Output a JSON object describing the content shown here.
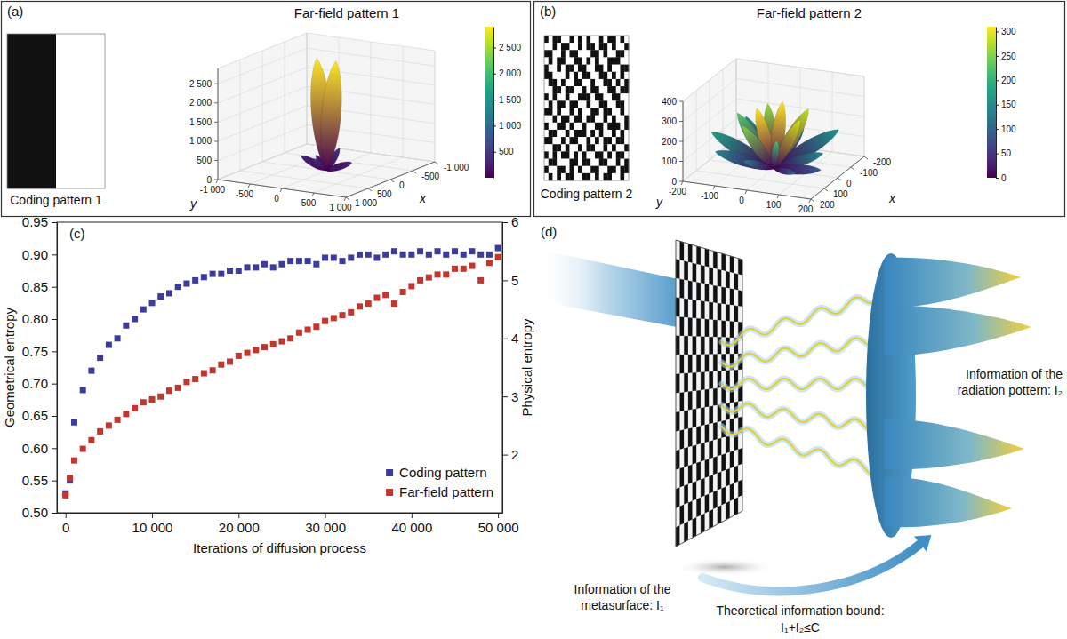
{
  "chart_data": [
    {
      "type": "surface3d",
      "panel": "(a)",
      "title": "Far-field pattern 1",
      "grid": true,
      "coding_pattern": {
        "label": "Coding pattern 1",
        "cells": [
          [
            1,
            0
          ]
        ]
      },
      "x_label": "x",
      "y_label": "y",
      "xlim": [
        -1000,
        1000
      ],
      "xticks": [
        {
          "value": -1000,
          "label": "-1 000"
        },
        -500,
        0,
        500,
        {
          "value": 1000,
          "label": "1 000"
        }
      ],
      "ylim": [
        -1000,
        1000
      ],
      "yticks": [
        {
          "value": -1000,
          "label": "-1 000"
        },
        -500,
        0,
        500,
        {
          "value": 1000,
          "label": "1 000"
        }
      ],
      "zlim": [
        0,
        2900
      ],
      "zticks": [
        0,
        500,
        {
          "value": 1000,
          "label": "1 000"
        },
        {
          "value": 1500,
          "label": "1 500"
        },
        {
          "value": 2000,
          "label": "2 000"
        },
        {
          "value": 2500,
          "label": "2 500"
        }
      ],
      "colorbar": {
        "range": [
          0,
          2900
        ],
        "ticks": [
          500,
          {
            "value": 1000,
            "label": "1 000"
          },
          {
            "value": 1500,
            "label": "1 500"
          },
          {
            "value": 2000,
            "label": "2 000"
          },
          {
            "value": 2500,
            "label": "2 500"
          }
        ]
      },
      "lobes": [
        {
          "x": -200,
          "y": -300,
          "z": 250
        },
        {
          "x": 0,
          "y": -400,
          "z": 300
        },
        {
          "x": -300,
          "y": 0,
          "z": 450
        },
        {
          "x": 0,
          "y": -150,
          "z": 2900
        },
        {
          "x": 0,
          "y": 150,
          "z": 2900
        },
        {
          "x": 300,
          "y": 0,
          "z": 450
        },
        {
          "x": 0,
          "y": 400,
          "z": 300
        },
        {
          "x": 200,
          "y": 300,
          "z": 250
        }
      ]
    },
    {
      "type": "surface3d",
      "panel": "(b)",
      "title": "Far-field pattern 2",
      "grid": true,
      "coding_pattern": {
        "label": "Coding pattern 2",
        "cells": [
          [
            1,
            0,
            1,
            1,
            0,
            0,
            1,
            0,
            1,
            0,
            1,
            0,
            0,
            1,
            0,
            1,
            1,
            0,
            1,
            0
          ],
          [
            0,
            0,
            1,
            0,
            1,
            1,
            0,
            0,
            1,
            0,
            1,
            1,
            0,
            1,
            1,
            0,
            1,
            0,
            0,
            1
          ],
          [
            1,
            1,
            0,
            0,
            1,
            0,
            1,
            1,
            0,
            0,
            0,
            1,
            1,
            0,
            1,
            0,
            0,
            1,
            1,
            0
          ],
          [
            0,
            1,
            0,
            1,
            1,
            0,
            0,
            1,
            1,
            0,
            1,
            0,
            1,
            0,
            0,
            1,
            1,
            1,
            0,
            0
          ],
          [
            1,
            0,
            0,
            1,
            0,
            1,
            1,
            0,
            1,
            1,
            0,
            0,
            1,
            1,
            0,
            1,
            0,
            0,
            1,
            1
          ],
          [
            1,
            1,
            0,
            0,
            0,
            1,
            0,
            1,
            0,
            1,
            1,
            0,
            0,
            1,
            1,
            0,
            1,
            0,
            1,
            0
          ],
          [
            0,
            1,
            1,
            0,
            1,
            0,
            0,
            1,
            1,
            0,
            0,
            1,
            0,
            0,
            1,
            1,
            0,
            1,
            0,
            1
          ],
          [
            0,
            0,
            1,
            1,
            0,
            1,
            1,
            0,
            0,
            1,
            0,
            1,
            1,
            0,
            0,
            1,
            1,
            0,
            1,
            1
          ],
          [
            1,
            0,
            1,
            0,
            0,
            1,
            0,
            0,
            1,
            1,
            1,
            0,
            1,
            1,
            0,
            0,
            1,
            1,
            0,
            0
          ],
          [
            0,
            1,
            0,
            1,
            1,
            0,
            1,
            1,
            0,
            0,
            1,
            0,
            0,
            1,
            1,
            0,
            0,
            1,
            1,
            0
          ],
          [
            1,
            1,
            0,
            1,
            0,
            0,
            1,
            0,
            1,
            0,
            0,
            1,
            1,
            0,
            1,
            1,
            0,
            0,
            1,
            0
          ],
          [
            0,
            0,
            1,
            0,
            1,
            1,
            0,
            1,
            1,
            0,
            1,
            1,
            0,
            0,
            1,
            0,
            1,
            0,
            0,
            1
          ],
          [
            1,
            0,
            0,
            1,
            1,
            0,
            1,
            0,
            0,
            1,
            0,
            0,
            1,
            1,
            0,
            1,
            1,
            1,
            0,
            1
          ],
          [
            0,
            1,
            1,
            0,
            0,
            1,
            0,
            1,
            1,
            1,
            0,
            1,
            0,
            1,
            0,
            0,
            1,
            0,
            1,
            0
          ],
          [
            1,
            1,
            0,
            0,
            1,
            0,
            1,
            1,
            0,
            0,
            1,
            0,
            1,
            0,
            1,
            1,
            0,
            1,
            1,
            0
          ],
          [
            0,
            0,
            1,
            1,
            0,
            1,
            0,
            0,
            1,
            0,
            1,
            1,
            0,
            0,
            1,
            0,
            1,
            0,
            0,
            1
          ],
          [
            1,
            0,
            1,
            0,
            1,
            1,
            0,
            1,
            0,
            1,
            0,
            0,
            1,
            1,
            0,
            1,
            0,
            1,
            1,
            0
          ],
          [
            0,
            1,
            1,
            0,
            0,
            0,
            1,
            1,
            0,
            1,
            1,
            0,
            0,
            1,
            1,
            0,
            0,
            1,
            0,
            1
          ],
          [
            1,
            0,
            0,
            1,
            1,
            0,
            1,
            0,
            1,
            0,
            0,
            1,
            1,
            0,
            0,
            1,
            1,
            0,
            1,
            1
          ],
          [
            0,
            1,
            0,
            1,
            0,
            1,
            1,
            0,
            0,
            1,
            1,
            0,
            1,
            0,
            1,
            1,
            0,
            0,
            1,
            0
          ]
        ]
      },
      "x_label": "x",
      "y_label": "y",
      "xlim": [
        -200,
        200
      ],
      "xticks": [
        -200,
        -100,
        0,
        100,
        200
      ],
      "ylim": [
        -200,
        200
      ],
      "yticks": [
        -200,
        -100,
        0,
        100,
        200
      ],
      "zlim": [
        0,
        400
      ],
      "zticks": [
        0,
        100,
        200,
        300,
        400
      ],
      "colorbar": {
        "range": [
          0,
          310
        ],
        "ticks": [
          0,
          50,
          100,
          150,
          200,
          250,
          300
        ]
      },
      "lobes": [
        {
          "x": -150,
          "y": -150,
          "z": 150
        },
        {
          "x": -190,
          "y": -60,
          "z": 80
        },
        {
          "x": -40,
          "y": -130,
          "z": 230
        },
        {
          "x": -180,
          "y": 20,
          "z": 120
        },
        {
          "x": -100,
          "y": -60,
          "z": 260
        },
        {
          "x": 60,
          "y": -170,
          "z": 180
        },
        {
          "x": 30,
          "y": -40,
          "z": 310
        },
        {
          "x": -20,
          "y": 20,
          "z": 330
        },
        {
          "x": -70,
          "y": 80,
          "z": 280
        },
        {
          "x": -130,
          "y": 150,
          "z": 160
        },
        {
          "x": 90,
          "y": -60,
          "z": 250
        },
        {
          "x": 150,
          "y": -120,
          "z": 140
        },
        {
          "x": 40,
          "y": 100,
          "z": 290
        },
        {
          "x": 180,
          "y": -20,
          "z": 130
        },
        {
          "x": 120,
          "y": 60,
          "z": 220
        },
        {
          "x": 60,
          "y": 180,
          "z": 150
        },
        {
          "x": 100,
          "y": 190,
          "z": 90
        },
        {
          "x": 170,
          "y": 140,
          "z": 100
        }
      ]
    },
    {
      "type": "scatter",
      "panel": "(c)",
      "marker": "square",
      "legend": "lower right",
      "x_label": "Iterations of diffusion process",
      "y_label": "Geometrical entropy",
      "y2_label": "Physical entropy",
      "xlim": [
        -1000,
        50500
      ],
      "xticks": [
        0,
        {
          "value": 10000,
          "label": "10 000"
        },
        {
          "value": 20000,
          "label": "20 000"
        },
        {
          "value": 30000,
          "label": "30 000"
        },
        {
          "value": 40000,
          "label": "40 000"
        },
        {
          "value": 50000,
          "label": "50 000"
        }
      ],
      "ylim": [
        0.5,
        0.95
      ],
      "yticks": [
        {
          "value": 0.5,
          "label": "0.50"
        },
        0.55,
        {
          "value": 0.6,
          "label": "0.60"
        },
        0.65,
        {
          "value": 0.7,
          "label": "0.70"
        },
        0.75,
        {
          "value": 0.8,
          "label": "0.80"
        },
        0.85,
        {
          "value": 0.9,
          "label": "0.90"
        },
        0.95
      ],
      "y2lim": [
        1,
        6
      ],
      "y2ticks": [
        2,
        3,
        4,
        5,
        6
      ],
      "x": [
        0,
        500,
        1000,
        2000,
        3000,
        4000,
        5000,
        6000,
        7000,
        8000,
        9000,
        10000,
        11000,
        12000,
        13000,
        14000,
        15000,
        16000,
        17000,
        18000,
        19000,
        20000,
        21000,
        22000,
        23000,
        24000,
        25000,
        26000,
        27000,
        28000,
        29000,
        30000,
        31000,
        32000,
        33000,
        34000,
        35000,
        36000,
        37000,
        38000,
        39000,
        40000,
        41000,
        42000,
        43000,
        44000,
        45000,
        46000,
        47000,
        48000,
        49000,
        50000
      ],
      "series": [
        {
          "name": "Coding pattern",
          "color": "#3d3b9e",
          "values": [
            0.53,
            0.55,
            0.64,
            0.69,
            0.72,
            0.74,
            0.76,
            0.77,
            0.79,
            0.8,
            0.815,
            0.825,
            0.835,
            0.84,
            0.85,
            0.855,
            0.86,
            0.865,
            0.87,
            0.87,
            0.875,
            0.875,
            0.88,
            0.88,
            0.885,
            0.88,
            0.885,
            0.89,
            0.89,
            0.89,
            0.885,
            0.895,
            0.895,
            0.89,
            0.895,
            0.9,
            0.9,
            0.895,
            0.9,
            0.905,
            0.9,
            0.9,
            0.905,
            0.9,
            0.905,
            0.9,
            0.905,
            0.9,
            0.905,
            0.9,
            0.9,
            0.91
          ]
        },
        {
          "name": "Far-field pattern",
          "color": "#c2362e",
          "axis": "y2",
          "values": [
            1.3,
            1.6,
            1.9,
            2.1,
            2.25,
            2.4,
            2.5,
            2.6,
            2.7,
            2.8,
            2.9,
            2.95,
            3.0,
            3.1,
            3.15,
            3.25,
            3.3,
            3.4,
            3.45,
            3.55,
            3.6,
            3.7,
            3.75,
            3.8,
            3.85,
            3.9,
            3.95,
            4.0,
            4.1,
            4.15,
            4.2,
            4.3,
            4.35,
            4.4,
            4.45,
            4.55,
            4.6,
            4.7,
            4.75,
            4.6,
            4.8,
            4.9,
            5.0,
            5.05,
            5.1,
            5.1,
            5.2,
            5.2,
            5.25,
            5.0,
            5.3,
            5.4
          ]
        }
      ]
    }
  ],
  "diagram": {
    "panel": "(d)",
    "metasurface_label": "Information of the metasurface: I₁",
    "pattern_label": "Information of the radiation pottern: I₂",
    "bound_label": "Theoretical information bound:",
    "bound_formula": "I₁+I₂≤C"
  }
}
